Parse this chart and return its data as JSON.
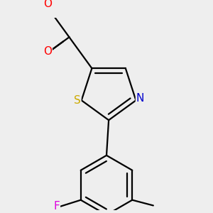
{
  "background_color": "#eeeeee",
  "atom_colors": {
    "C": "#000000",
    "O": "#ff0000",
    "N": "#0000cc",
    "S": "#ccaa00",
    "F": "#dd00dd"
  },
  "bond_color": "#000000",
  "bond_width": 1.6,
  "font_size": 11
}
